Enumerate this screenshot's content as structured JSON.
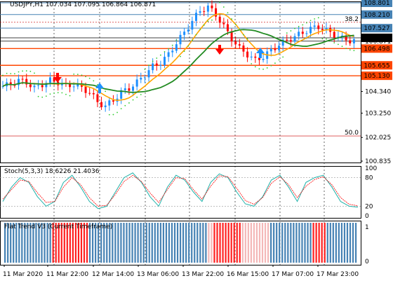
{
  "header": {
    "symbol_info": "USDJPY,H1  107.034 107.095 106.864 106.871"
  },
  "price_axis": {
    "ticks": [
      "108.801",
      "108.210",
      "107.527",
      "107.039",
      "106.871",
      "106.498",
      "105.655",
      "105.130",
      "104.340",
      "103.250",
      "102.025",
      "100.835"
    ],
    "boxed": {
      "108.801": "#4682b4",
      "108.210": "#4682b4",
      "107.527": "#4682b4",
      "107.039": "#000000",
      "106.498": "#ff4500",
      "105.655": "#ff4500",
      "105.130": "#ff4500"
    }
  },
  "fib_labels": [
    {
      "text": "38.2",
      "price": 107.82
    },
    {
      "text": "50.0",
      "price": 102.1
    }
  ],
  "stoch": {
    "title": "Stoch(5,3,3) 18.6226 21.4036",
    "ticks": [
      "100",
      "80",
      "20",
      "0"
    ]
  },
  "flat_trend": {
    "title": "Flat Trend V3 (Current Timeframe)",
    "ticks": [
      "1",
      "0"
    ]
  },
  "time_axis": {
    "labels": [
      "11 Mar 2020",
      "11 Mar 22:00",
      "12 Mar 14:00",
      "13 Mar 06:00",
      "13 Mar 22:00",
      "16 Mar 15:00",
      "17 Mar 07:00",
      "17 Mar 23:00"
    ]
  },
  "colors": {
    "bull": "#1e90ff",
    "bear": "#ff0000",
    "ma_fast": "#ffa500",
    "ma_slow": "#228b22",
    "psar": "#32cd32",
    "level_blue": "#4682b4",
    "level_red": "#ff4500",
    "stoch_main": "#20b2aa",
    "stoch_signal": "#ff0000"
  },
  "chart_data": {
    "type": "candlestick",
    "series_close_approx": [
      104.6,
      104.7,
      104.9,
      104.8,
      104.5,
      104.7,
      104.9,
      104.8,
      104.6,
      104.7,
      104.5,
      104.3,
      103.8,
      103.6,
      103.9,
      104.3,
      104.5,
      104.8,
      105.2,
      105.6,
      105.8,
      106.2,
      106.8,
      107.3,
      107.9,
      108.4,
      108.6,
      108.2,
      107.6,
      107.0,
      106.5,
      106.2,
      105.9,
      106.1,
      106.4,
      106.7,
      106.9,
      107.1,
      107.3,
      107.5,
      107.6,
      107.4,
      107.2,
      107.0,
      106.9
    ],
    "ylim": [
      100.835,
      108.801
    ],
    "stoch_main_approx": [
      30,
      60,
      80,
      70,
      40,
      20,
      30,
      70,
      85,
      60,
      30,
      15,
      20,
      50,
      80,
      90,
      70,
      40,
      20,
      60,
      85,
      75,
      50,
      30,
      70,
      88,
      80,
      50,
      25,
      20,
      40,
      75,
      85,
      60,
      30,
      70,
      80,
      85,
      60,
      30,
      20,
      18
    ],
    "stoch_signal_approx": [
      35,
      55,
      75,
      72,
      48,
      28,
      30,
      60,
      80,
      65,
      38,
      20,
      22,
      45,
      72,
      85,
      72,
      48,
      28,
      55,
      80,
      78,
      55,
      35,
      62,
      84,
      82,
      58,
      32,
      24,
      38,
      68,
      82,
      65,
      38,
      62,
      76,
      82,
      65,
      38,
      24,
      21
    ],
    "flat_trend_colors": [
      "b",
      "b",
      "b",
      "b",
      "b",
      "b",
      "b",
      "b",
      "b",
      "b",
      "b",
      "b",
      "b",
      "b",
      "b",
      "b",
      "b",
      "r",
      "r",
      "r",
      "r",
      "r",
      "r",
      "r",
      "r",
      "r",
      "r",
      "r",
      "r",
      "r",
      "b",
      "b",
      "b",
      "b",
      "b",
      "b",
      "b",
      "b",
      "b",
      "b",
      "b",
      "b",
      "b",
      "b",
      "b",
      "b",
      "b",
      "b",
      "b",
      "b",
      "b",
      "b",
      "b",
      "b",
      "b",
      "b",
      "b",
      "b",
      "b",
      "b",
      "b",
      "b",
      "b",
      "b",
      "b",
      "b",
      "b",
      "b",
      "b",
      "b",
      "b",
      "b",
      "p",
      "p",
      "r",
      "r",
      "r",
      "r",
      "r",
      "r",
      "r",
      "r",
      "r",
      "r",
      "p",
      "p",
      "p",
      "p",
      "p",
      "p",
      "p",
      "p",
      "p",
      "p",
      "b",
      "b",
      "b",
      "b",
      "b",
      "b",
      "b",
      "b",
      "b",
      "b",
      "b",
      "b",
      "b",
      "b",
      "b",
      "r",
      "r",
      "r",
      "r",
      "r",
      "b",
      "b",
      "b",
      "b",
      "b",
      "b",
      "b",
      "b",
      "b",
      "b",
      "b"
    ]
  }
}
